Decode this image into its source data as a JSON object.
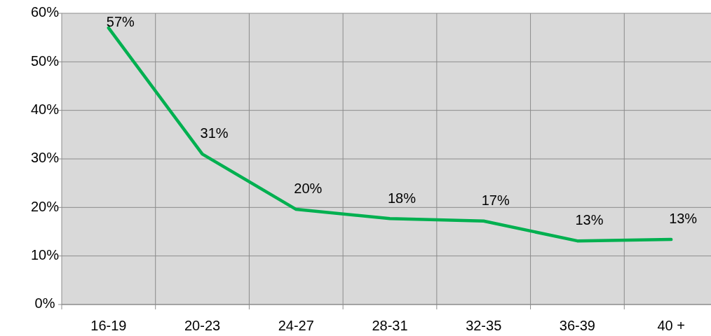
{
  "chart_data": {
    "type": "line",
    "categories": [
      "16-19",
      "20-23",
      "24-27",
      "28-31",
      "32-35",
      "36-39",
      "40 +"
    ],
    "series": [
      {
        "color": "#00b050",
        "values": [
          57,
          31,
          19.6,
          17.7,
          17.2,
          13.1,
          13.4
        ],
        "value_labels": [
          "57%",
          "31%",
          "20%",
          "18%",
          "17%",
          "13%",
          "13%"
        ]
      }
    ],
    "ylim": [
      0,
      60
    ],
    "yticks": [
      {
        "value": 0,
        "label": "0%"
      },
      {
        "value": 10,
        "label": "10%"
      },
      {
        "value": 20,
        "label": "20%"
      },
      {
        "value": 30,
        "label": "30%"
      },
      {
        "value": 40,
        "label": "40%"
      },
      {
        "value": 50,
        "label": "50%"
      },
      {
        "value": 60,
        "label": "60%"
      }
    ],
    "grid": true,
    "marker": "none",
    "line_style": "solid"
  }
}
